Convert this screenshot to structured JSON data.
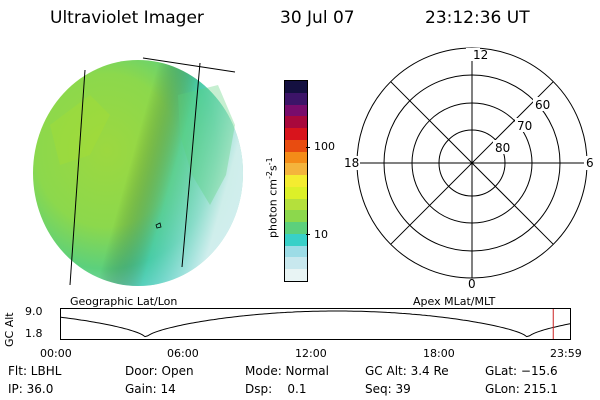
{
  "header": {
    "instrument": "Ultraviolet Imager",
    "date": "30 Jul 07",
    "time": "23:12:36 UT"
  },
  "colorbar": {
    "unit_label_text": "photon cm",
    "unit_sup1": "-2",
    "unit_mid": "s",
    "unit_sup2": "-1",
    "ticks": [
      "100",
      "10"
    ],
    "colors": [
      "#e8f4f4",
      "#c8e8ee",
      "#9cdce6",
      "#38d0c8",
      "#5cd07c",
      "#8cd84c",
      "#b4e03c",
      "#dcf028",
      "#f4ec30",
      "#f4b43c",
      "#f48c18",
      "#e84c10",
      "#d8141c",
      "#a8083c",
      "#780c6c",
      "#3c1468",
      "#141040"
    ]
  },
  "polar": {
    "mlt_labels": {
      "top": "12",
      "left": "18",
      "right": "6",
      "bottom": "0"
    },
    "lat_labels": [
      "60",
      "70",
      "80"
    ]
  },
  "labels": {
    "left_panel": "Geographic Lat/Lon",
    "right_panel": "Apex MLat/MLT"
  },
  "altitude_plot": {
    "ylabel": "GC Alt",
    "yticks": [
      "9.0",
      "1.8"
    ],
    "xticks": [
      "00:00",
      "06:00",
      "12:00",
      "18:00",
      "23:59"
    ],
    "marker_hour": 23.21,
    "marker_color": "#cc2222"
  },
  "info": {
    "row1": [
      "Flt: LBHL",
      "Door: Open",
      "Mode: Normal",
      "GC Alt: 3.4 Re",
      "GLat: −15.6"
    ],
    "row2": [
      "IP: 36.0",
      "Gain: 14",
      "Dsp:    0.1",
      "Seq: 39",
      "GLon: 215.1"
    ]
  }
}
